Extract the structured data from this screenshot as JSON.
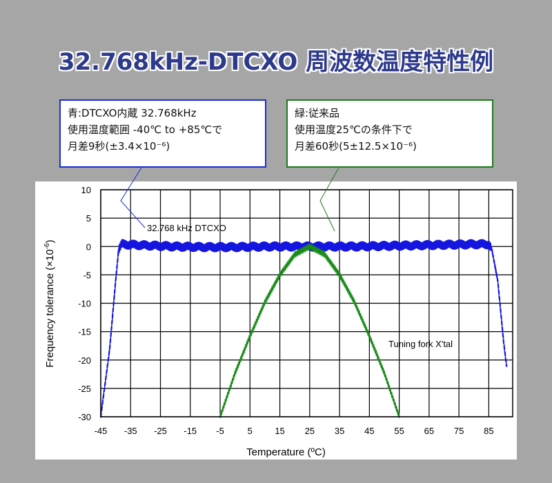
{
  "title": "32.768kHz-DTCXO 周波数温度特性例",
  "callouts": {
    "blue": {
      "line1": "青:DTCXO内蔵  32.768kHz",
      "line2": "使用温度範囲  -40℃ to +85℃で",
      "line3": "月差9秒(±3.4×10⁻⁶)",
      "border_color": "#1a2bd9"
    },
    "green": {
      "line1": "緑:従来品",
      "line2": "使用温度25℃の条件下で",
      "line3": "月差60秒(5±12.5×10⁻⁶)",
      "border_color": "#1c7a1c"
    }
  },
  "chart_data": {
    "type": "line",
    "xlabel": "Temperature (ºC)",
    "ylabel": "Frequency tolerance (×10",
    "ylabel_exp": "-6",
    "ylabel_close": ")",
    "xlim": [
      -45,
      93
    ],
    "ylim": [
      -30,
      10
    ],
    "x_ticks": [
      "-45",
      "-35",
      "-25",
      "-15",
      "-5",
      "5",
      "15",
      "25",
      "35",
      "45",
      "55",
      "65",
      "75",
      "85"
    ],
    "y_ticks": [
      "10",
      "5",
      "0",
      "-5",
      "-10",
      "-15",
      "-20",
      "-25",
      "-30"
    ],
    "grid": true,
    "series": [
      {
        "name": "32.768 kHz DTCXO",
        "color": "#1515e0",
        "band_half_width": 0.9,
        "x": [
          -45,
          -42,
          -40,
          -39,
          -38,
          -30,
          -20,
          -10,
          0,
          10,
          20,
          25,
          30,
          40,
          50,
          60,
          70,
          80,
          85,
          86,
          88,
          90,
          91
        ],
        "y": [
          -30,
          -18,
          -6,
          -0.5,
          0.4,
          0.2,
          0.0,
          -0.1,
          -0.1,
          0.0,
          0.0,
          0.0,
          0.0,
          0.0,
          0.1,
          0.2,
          0.3,
          0.4,
          0.4,
          -0.5,
          -6,
          -17,
          -21.2
        ]
      },
      {
        "name": "Tuning fork X'tal",
        "color": "#1a8c1a",
        "x": [
          -5,
          0,
          5,
          10,
          15,
          20,
          25,
          30,
          35,
          40,
          45,
          50,
          55
        ],
        "y": [
          -30,
          -22.3,
          -15.8,
          -9.8,
          -5.0,
          -1.4,
          0.0,
          -1.4,
          -5.0,
          -9.8,
          -15.8,
          -22.3,
          -30
        ]
      }
    ]
  }
}
